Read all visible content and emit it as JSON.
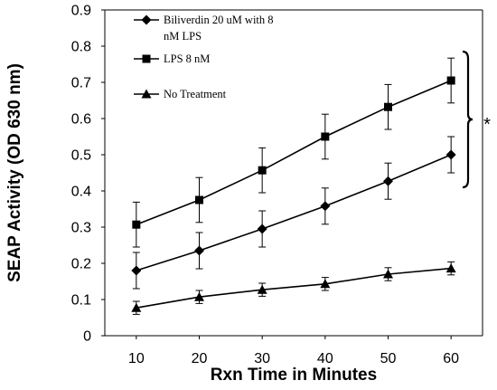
{
  "chart_data": {
    "type": "line",
    "xlabel": "Rxn Time in Minutes",
    "ylabel": "SEAP Activity (OD 630 nm)",
    "x": [
      10,
      20,
      30,
      40,
      50,
      60
    ],
    "xlim": [
      5,
      65
    ],
    "ylim": [
      0,
      0.9
    ],
    "yticks": [
      0,
      0.1,
      0.2,
      0.3,
      0.4,
      0.5,
      0.6,
      0.7,
      0.8,
      0.9
    ],
    "xticks": [
      10,
      20,
      30,
      40,
      50,
      60
    ],
    "grid": false,
    "legend_position": "top-left",
    "series": [
      {
        "name": "Biliverdin 20 uM with 8 nM LPS",
        "legend_lines": [
          "Biliverdin 20 uM with 8",
          "nM LPS"
        ],
        "marker": "diamond",
        "values": [
          0.18,
          0.235,
          0.295,
          0.358,
          0.427,
          0.5
        ],
        "errors": [
          0.05,
          0.05,
          0.05,
          0.05,
          0.05,
          0.05
        ]
      },
      {
        "name": "LPS 8 nM",
        "legend_lines": [
          "LPS 8 nM"
        ],
        "marker": "square",
        "values": [
          0.307,
          0.375,
          0.457,
          0.55,
          0.632,
          0.705
        ],
        "errors": [
          0.062,
          0.062,
          0.062,
          0.062,
          0.062,
          0.062
        ]
      },
      {
        "name": "No Treatment",
        "legend_lines": [
          "No Treatment"
        ],
        "marker": "triangle",
        "values": [
          0.077,
          0.107,
          0.127,
          0.143,
          0.17,
          0.186
        ],
        "errors": [
          0.018,
          0.018,
          0.018,
          0.018,
          0.018,
          0.018
        ]
      }
    ],
    "annotation": {
      "text": "*",
      "bracket_range": [
        0.41,
        0.785
      ]
    }
  }
}
